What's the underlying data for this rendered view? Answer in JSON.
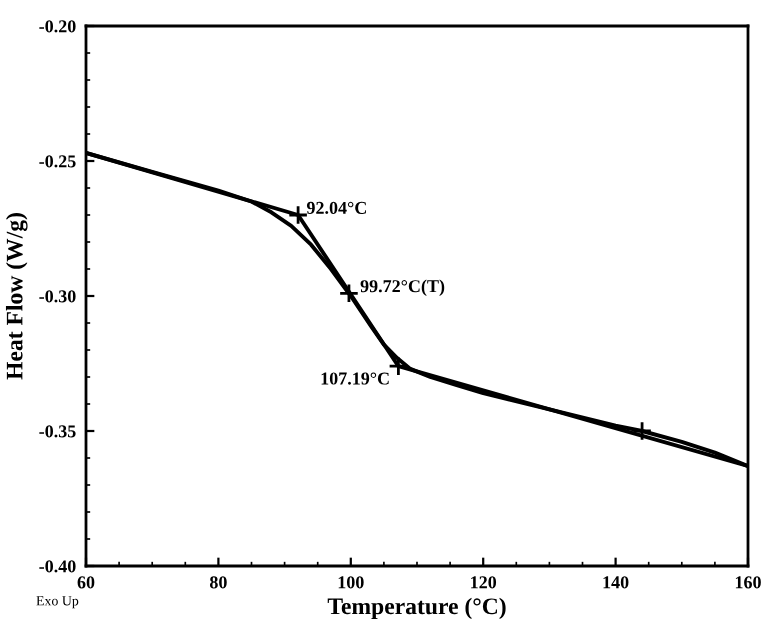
{
  "chart_data": {
    "type": "line",
    "xlabel": "Temperature (°C)",
    "ylabel": "Heat Flow (W/g)",
    "xlim": [
      60,
      160
    ],
    "xticks": [
      60,
      80,
      100,
      120,
      140,
      160
    ],
    "ylim": [
      -0.4,
      -0.2
    ],
    "yticks": [
      {
        "value": -0.4,
        "label": "-0.40"
      },
      {
        "value": -0.35,
        "label": "-0.35"
      },
      {
        "value": -0.3,
        "label": "-0.30"
      },
      {
        "value": -0.25,
        "label": "-0.25"
      },
      {
        "value": -0.2,
        "label": "-0.20"
      }
    ],
    "grid": false,
    "legend": false,
    "line_style": "solid",
    "series": [
      {
        "color": "#000000",
        "x": [
          60,
          70,
          80,
          85,
          88,
          91,
          94,
          97,
          100,
          103,
          105,
          107,
          109,
          112,
          116,
          120,
          130,
          140,
          144,
          150,
          155,
          160
        ],
        "values": [
          -0.247,
          -0.254,
          -0.261,
          -0.265,
          -0.269,
          -0.274,
          -0.281,
          -0.29,
          -0.3,
          -0.311,
          -0.318,
          -0.323,
          -0.327,
          -0.33,
          -0.333,
          -0.336,
          -0.342,
          -0.348,
          -0.35,
          -0.354,
          -0.358,
          -0.363
        ]
      },
      {
        "color": "#000000",
        "x": [
          60,
          92.04,
          107.19,
          160
        ],
        "values": [
          -0.247,
          -0.27,
          -0.326,
          -0.363
        ]
      },
      {
        "type": "scatter",
        "marker": "cross",
        "color": "#000000",
        "x": [
          92.04,
          99.72,
          107.19,
          144
        ],
        "values": [
          -0.27,
          -0.299,
          -0.326,
          -0.35
        ]
      }
    ],
    "annotations": [
      {
        "text": "92.04°C",
        "x": 92.04,
        "y": -0.27
      },
      {
        "text": "99.72°C(T)",
        "x": 99.72,
        "y": -0.299
      },
      {
        "text": "107.19°C",
        "x": 107.19,
        "y": -0.326
      },
      "Exo Up"
    ]
  }
}
